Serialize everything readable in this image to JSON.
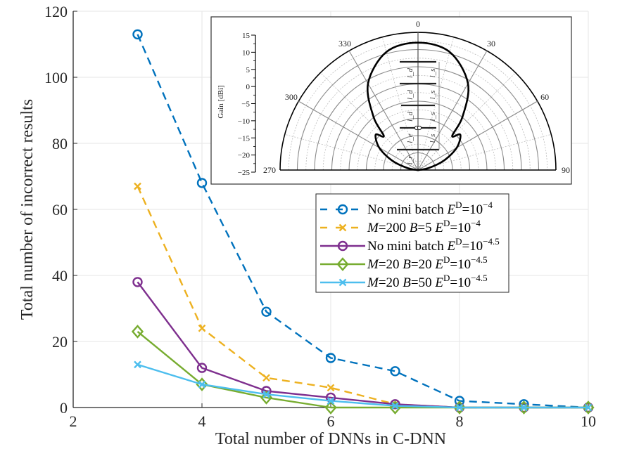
{
  "chart_data": {
    "type": "line",
    "title": "",
    "xlabel": "Total number of DNNs in C-DNN",
    "ylabel": "Total number of incorrect results",
    "xlim": [
      2,
      10
    ],
    "ylim": [
      0,
      120
    ],
    "xticks": [
      "2",
      "4",
      "6",
      "8",
      "10"
    ],
    "yticks": [
      "0",
      "20",
      "40",
      "60",
      "80",
      "100",
      "120"
    ],
    "grid": true,
    "legend_position": "center-right",
    "x": [
      3,
      4,
      5,
      6,
      7,
      8,
      9,
      10
    ],
    "series": [
      {
        "name": "No mini batch E^D=10^-4",
        "legend_main": "No mini batch ",
        "legend_exp": "−4",
        "italic_prefix": false,
        "color": "#0072BD",
        "dash": "dashed",
        "marker": "circle",
        "values": [
          113,
          68,
          29,
          15,
          11,
          2,
          1,
          0
        ]
      },
      {
        "name": "M=200 B=5 E^D=10^-4",
        "legend_main": "M=200 B=5 ",
        "legend_exp": "−4",
        "italic_prefix": true,
        "color": "#EDB120",
        "dash": "dashed",
        "marker": "x",
        "values": [
          67,
          24,
          9,
          6,
          1,
          0,
          0,
          0
        ]
      },
      {
        "name": "No mini batch E^D=10^-4.5",
        "legend_main": "No mini batch ",
        "legend_exp": "−4.5",
        "italic_prefix": false,
        "color": "#7E2F8E",
        "dash": "solid",
        "marker": "circle",
        "values": [
          38,
          12,
          5,
          3,
          1,
          0,
          0,
          0
        ]
      },
      {
        "name": "M=20 B=20 E^D=10^-4.5",
        "legend_main": "M=20 B=20 ",
        "legend_exp": "−4.5",
        "italic_prefix": true,
        "color": "#77AC30",
        "dash": "solid",
        "marker": "diamond",
        "values": [
          23,
          7,
          3,
          0,
          0,
          0,
          0,
          0
        ]
      },
      {
        "name": "M=20 B=50 E^D=10^-4.5",
        "legend_main": "M=20 B=50 ",
        "legend_exp": "−4.5",
        "italic_prefix": true,
        "color": "#4DBEEE",
        "dash": "solid",
        "marker": "x",
        "values": [
          13,
          7,
          4,
          2,
          0.5,
          0,
          0,
          0
        ]
      }
    ],
    "inset": {
      "type": "polar",
      "ylabel": "Gain [dBi]",
      "rticks": [
        "15",
        "10",
        "5",
        "0",
        "−5",
        "−10",
        "−15",
        "−20",
        "−25"
      ],
      "rlim": [
        -25,
        15
      ],
      "angle_labels": [
        "270",
        "300",
        "330",
        "0",
        "30",
        "60",
        "90"
      ],
      "pattern_gain_dbi": [
        {
          "angle": 0,
          "gain": 12
        },
        {
          "angle": 15,
          "gain": 10.5
        },
        {
          "angle": 30,
          "gain": 4
        },
        {
          "angle": 40,
          "gain": -5
        },
        {
          "angle": 45,
          "gain": -11
        },
        {
          "angle": 50,
          "gain": -9
        },
        {
          "angle": 60,
          "gain": -12
        },
        {
          "angle": 70,
          "gain": -17
        },
        {
          "angle": 80,
          "gain": -22
        },
        {
          "angle": 88,
          "gain": -25
        }
      ],
      "element_labels": [
        "l_d",
        "l_d",
        "l_d",
        "l_e",
        "l_r",
        "l_s",
        "l_s",
        "l_s",
        "l_s"
      ]
    }
  }
}
